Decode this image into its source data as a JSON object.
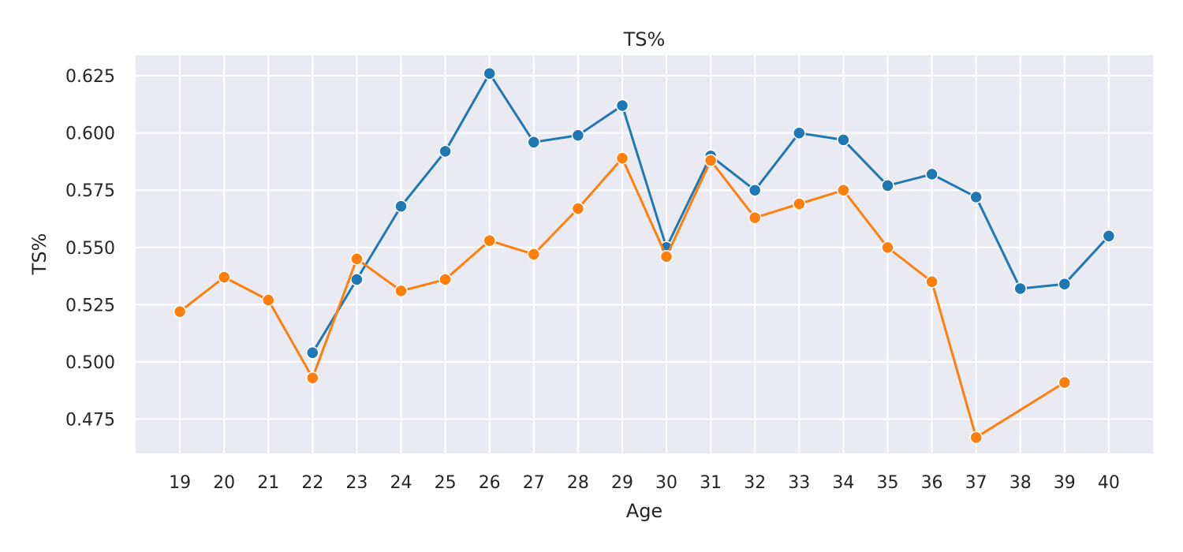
{
  "chart_data": {
    "type": "line",
    "title": "TS%",
    "xlabel": "Age",
    "ylabel": "TS%",
    "x": [
      19,
      20,
      21,
      22,
      23,
      24,
      25,
      26,
      27,
      28,
      29,
      30,
      31,
      32,
      33,
      34,
      35,
      36,
      37,
      38,
      39,
      40
    ],
    "xlim": [
      18,
      41
    ],
    "ylim": [
      0.46,
      0.634
    ],
    "yticks": [
      0.475,
      0.5,
      0.525,
      0.55,
      0.575,
      0.6,
      0.625
    ],
    "ytick_labels": [
      "0.475",
      "0.500",
      "0.525",
      "0.550",
      "0.575",
      "0.600",
      "0.625"
    ],
    "grid": true,
    "legend": false,
    "series": [
      {
        "color": "#1f77b4",
        "values": [
          null,
          null,
          null,
          0.504,
          0.536,
          0.568,
          0.592,
          0.626,
          0.596,
          0.599,
          0.612,
          0.55,
          0.59,
          0.575,
          0.6,
          0.597,
          0.577,
          0.582,
          0.572,
          0.532,
          0.534,
          0.555
        ]
      },
      {
        "color": "#ff7f0e",
        "values": [
          0.522,
          0.537,
          0.527,
          0.493,
          0.545,
          0.531,
          0.536,
          0.553,
          0.547,
          0.567,
          0.589,
          0.546,
          0.588,
          0.563,
          0.569,
          0.575,
          0.55,
          0.535,
          0.467,
          null,
          0.491,
          null
        ]
      }
    ]
  }
}
